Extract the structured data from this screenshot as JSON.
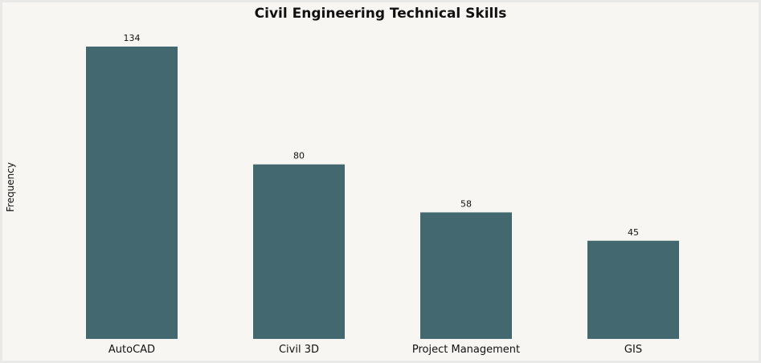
{
  "chart_data": {
    "type": "bar",
    "title": "Civil Engineering Technical Skills",
    "xlabel": "",
    "ylabel": "Frequency",
    "categories": [
      "AutoCAD",
      "Civil 3D",
      "Project Management",
      "GIS"
    ],
    "values": [
      134,
      80,
      58,
      45
    ],
    "ylim": [
      0,
      134
    ],
    "grid": false,
    "legend": "none",
    "bar_color": "#44686f"
  }
}
